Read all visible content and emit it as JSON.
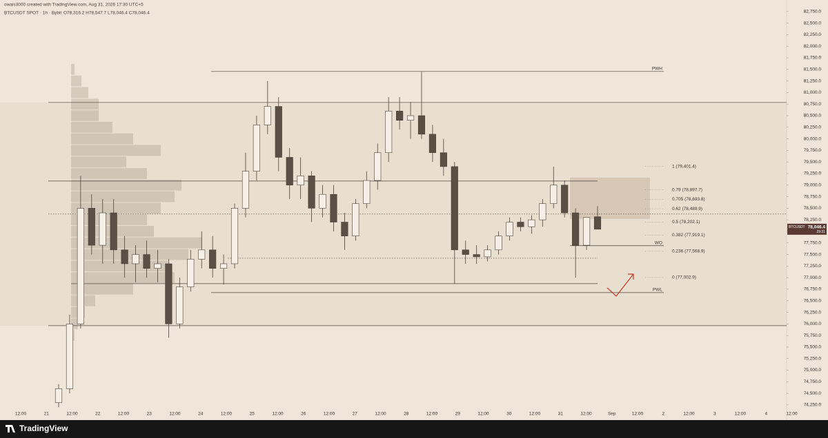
{
  "header": {
    "credit": "owais3000 created with TradingView.com, Aug 31, 2026 17:30 UTC+5",
    "symbol": "BTCUSDT SPOT · 1h · Bybit",
    "ohlc": "O78,316.2 H78,547.7 L78,046.4 C78,046.4"
  },
  "chart_data": {
    "type": "candlestick",
    "ylim": [
      74100,
      83000
    ],
    "yticks": [
      {
        "value": 82750,
        "label": "82,750.0"
      },
      {
        "value": 82500,
        "label": "82,500.0"
      },
      {
        "value": 82250,
        "label": "82,250.0"
      },
      {
        "value": 82000,
        "label": "82,000.0"
      },
      {
        "value": 81750,
        "label": "81,750.0"
      },
      {
        "value": 81500,
        "label": "81,500.0"
      },
      {
        "value": 81250,
        "label": "81,250.0"
      },
      {
        "value": 81000,
        "label": "81,000.0"
      },
      {
        "value": 80750,
        "label": "80,750.0"
      },
      {
        "value": 80500,
        "label": "80,500.0"
      },
      {
        "value": 80250,
        "label": "80,250.0"
      },
      {
        "value": 80000,
        "label": "80,000.0"
      },
      {
        "value": 79750,
        "label": "79,750.0"
      },
      {
        "value": 79500,
        "label": "79,500.0"
      },
      {
        "value": 79250,
        "label": "79,250.0"
      },
      {
        "value": 79000,
        "label": "79,000.0"
      },
      {
        "value": 78750,
        "label": "78,750.0"
      },
      {
        "value": 78500,
        "label": "78,500.0"
      },
      {
        "value": 78250,
        "label": "78,250.0"
      },
      {
        "value": 78000,
        "label": "78,000.0"
      },
      {
        "value": 77750,
        "label": "77,750.0"
      },
      {
        "value": 77500,
        "label": "77,500.0"
      },
      {
        "value": 77250,
        "label": "77,250.0"
      },
      {
        "value": 77000,
        "label": "77,000.0"
      },
      {
        "value": 76750,
        "label": "76,750.0"
      },
      {
        "value": 76500,
        "label": "76,500.0"
      },
      {
        "value": 76250,
        "label": "76,250.0"
      },
      {
        "value": 76000,
        "label": "76,000.0"
      },
      {
        "value": 75750,
        "label": "75,750.0"
      },
      {
        "value": 75500,
        "label": "75,500.0"
      },
      {
        "value": 75250,
        "label": "75,250.0"
      },
      {
        "value": 75000,
        "label": "75,000.0"
      },
      {
        "value": 74750,
        "label": "74,750.0"
      },
      {
        "value": 74500,
        "label": "74,500.0"
      },
      {
        "value": 74250,
        "label": "74,250.0"
      }
    ],
    "x_labels": [
      "12:00",
      "21",
      "12:00",
      "22",
      "12:00",
      "23",
      "12:00",
      "24",
      "12:00",
      "25",
      "12:00",
      "26",
      "12:00",
      "27",
      "12:00",
      "28",
      "12:00",
      "29",
      "12:00",
      "30",
      "12:00",
      "31",
      "12:00",
      "Sep",
      "12:00",
      "2",
      "12:00",
      "3",
      "12:00",
      "4",
      "12:00"
    ],
    "open": [
      74300,
      74600,
      76000,
      78500,
      77700,
      78400,
      77600,
      77300,
      77500,
      77200,
      77300,
      76000,
      76800,
      77400,
      77600,
      77200,
      77300,
      78500,
      79300,
      80300,
      80700,
      79600,
      79000,
      79200,
      78500,
      78800,
      78200,
      77900,
      78600,
      79100,
      79700,
      80600,
      80400,
      80500,
      80100,
      79700,
      79400,
      77600,
      77500,
      77450,
      77600,
      77900,
      78200,
      78100,
      78250,
      78600,
      79000,
      78400,
      77700,
      78316.2
    ],
    "high": [
      74700,
      76200,
      79200,
      78800,
      78700,
      78700,
      77900,
      77700,
      77800,
      77600,
      77400,
      77000,
      77600,
      78000,
      77900,
      77500,
      78600,
      79700,
      80500,
      81250,
      80900,
      79800,
      79600,
      79300,
      79000,
      79000,
      78400,
      78700,
      79300,
      79900,
      80900,
      80900,
      80800,
      81450,
      80300,
      80000,
      79500,
      77800,
      77700,
      77700,
      78000,
      78300,
      78300,
      78350,
      78700,
      79400,
      79100,
      78500,
      78300,
      78547.7
    ],
    "low": [
      74200,
      74500,
      75900,
      77500,
      77300,
      77300,
      77000,
      76900,
      77000,
      76900,
      75700,
      75900,
      76700,
      77200,
      77000,
      76850,
      77200,
      78300,
      79100,
      80100,
      79300,
      78700,
      78700,
      78200,
      78300,
      78000,
      77600,
      77800,
      78500,
      78900,
      79500,
      80200,
      80000,
      80000,
      79500,
      79200,
      76870,
      77300,
      77300,
      77350,
      77500,
      77800,
      78000,
      77950,
      78100,
      78500,
      78300,
      77000,
      77600,
      78046.4
    ],
    "close": [
      74600,
      76000,
      78500,
      77700,
      78400,
      77600,
      77300,
      77500,
      77200,
      77300,
      76000,
      76800,
      77400,
      77600,
      77200,
      77300,
      78500,
      79300,
      80300,
      80700,
      79600,
      79000,
      79200,
      78500,
      78800,
      78200,
      77900,
      78600,
      79100,
      79700,
      80600,
      80400,
      80500,
      80100,
      79700,
      79400,
      77600,
      77500,
      77450,
      77600,
      77900,
      78200,
      78100,
      78250,
      78600,
      79000,
      78400,
      77700,
      78300,
      78046.4
    ],
    "volume_profile": {
      "levels": [
        75750,
        76000,
        76250,
        76500,
        76750,
        77000,
        77250,
        77500,
        77750,
        78000,
        78250,
        78500,
        78750,
        79000,
        79250,
        79500,
        79750,
        80000,
        80250,
        80500,
        80750,
        81000,
        81250,
        81500
      ],
      "volumes": [
        5,
        10,
        20,
        35,
        90,
        150,
        140,
        170,
        190,
        120,
        110,
        130,
        150,
        160,
        110,
        80,
        130,
        90,
        60,
        40,
        40,
        25,
        15,
        5
      ],
      "xlim": [
        0,
        200
      ]
    },
    "levels": [
      {
        "value": 81455,
        "label": "PWH"
      },
      {
        "value": 80785
      },
      {
        "value": 79088
      },
      {
        "value": 78374
      },
      {
        "value": 77690,
        "label": "WO"
      },
      {
        "value": 77420
      },
      {
        "value": 76870
      },
      {
        "value": 76677,
        "label": "PWL"
      },
      {
        "value": 75962
      }
    ],
    "fib": [
      {
        "value": 79401.4,
        "label": "1 (79,401.4)"
      },
      {
        "value": 78897.7,
        "label": "0.79 (78,897.7)"
      },
      {
        "value": 78693.8,
        "label": "0.705 (78,693.8)"
      },
      {
        "value": 78489.9,
        "label": "0.62 (78,489.9)"
      },
      {
        "value": 78202.1,
        "label": "0.5 (78,202.1)"
      },
      {
        "value": 77919.1,
        "label": "0.382 (77,919.1)"
      },
      {
        "value": 77568.9,
        "label": "0.236 (77,568.9)"
      },
      {
        "value": 77002.9,
        "label": "0 (77,002.9)"
      }
    ],
    "zone": {
      "top": 79163,
      "bottom": 78270
    },
    "last_price": {
      "value": 78046.4,
      "label": "78,046.4",
      "symbol": "BTCUSDT",
      "countdown": "29:31"
    },
    "colors": {
      "up": "#f5efe6",
      "down": "#5a4f45",
      "wick": "#4a4038"
    }
  },
  "footer": {
    "brand": "TradingView"
  }
}
